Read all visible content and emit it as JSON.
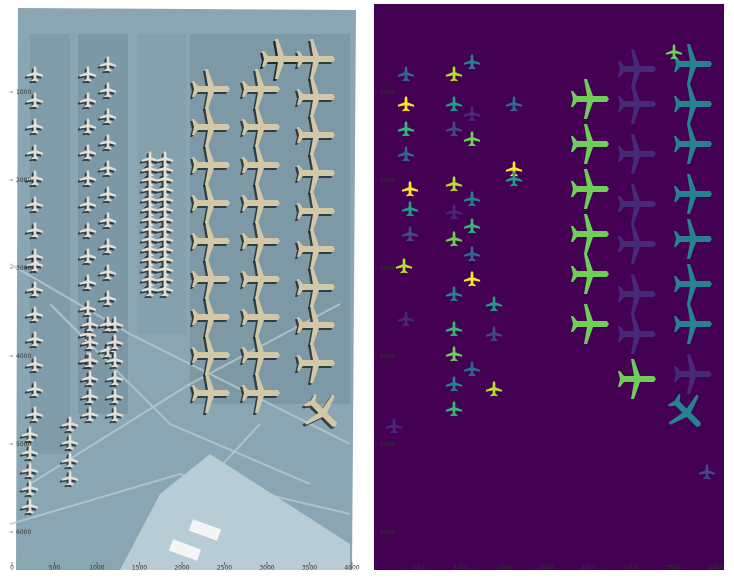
{
  "panels": {
    "left": {
      "kind": "aerial-photo",
      "x_ticks": [
        "0",
        "500",
        "1000",
        "1500",
        "2000",
        "2500",
        "3000",
        "3500",
        "4000"
      ],
      "y_ticks": [
        "1000",
        "2000",
        "3000",
        "4000",
        "5000",
        "6000"
      ],
      "colors": {
        "ground": "#8aa6b2",
        "ground_dark": "#5d7a86",
        "pad": "#b7ccd4",
        "plane": "#d2c7a6",
        "shadow": "#1d2629"
      }
    },
    "right": {
      "kind": "segmentation-mask",
      "x_ticks": [
        "0",
        "500",
        "1000",
        "1500",
        "2000",
        "2500",
        "3000",
        "3500",
        "4000"
      ],
      "y_ticks": [
        "1000",
        "2000",
        "3000",
        "4000",
        "5000",
        "6000"
      ],
      "colors": {
        "background": "#440154",
        "palette": [
          "#482878",
          "#3e4a89",
          "#31688e",
          "#26828e",
          "#1f9e89",
          "#35b779",
          "#6ece58",
          "#b5de2b",
          "#fde725"
        ]
      }
    }
  }
}
